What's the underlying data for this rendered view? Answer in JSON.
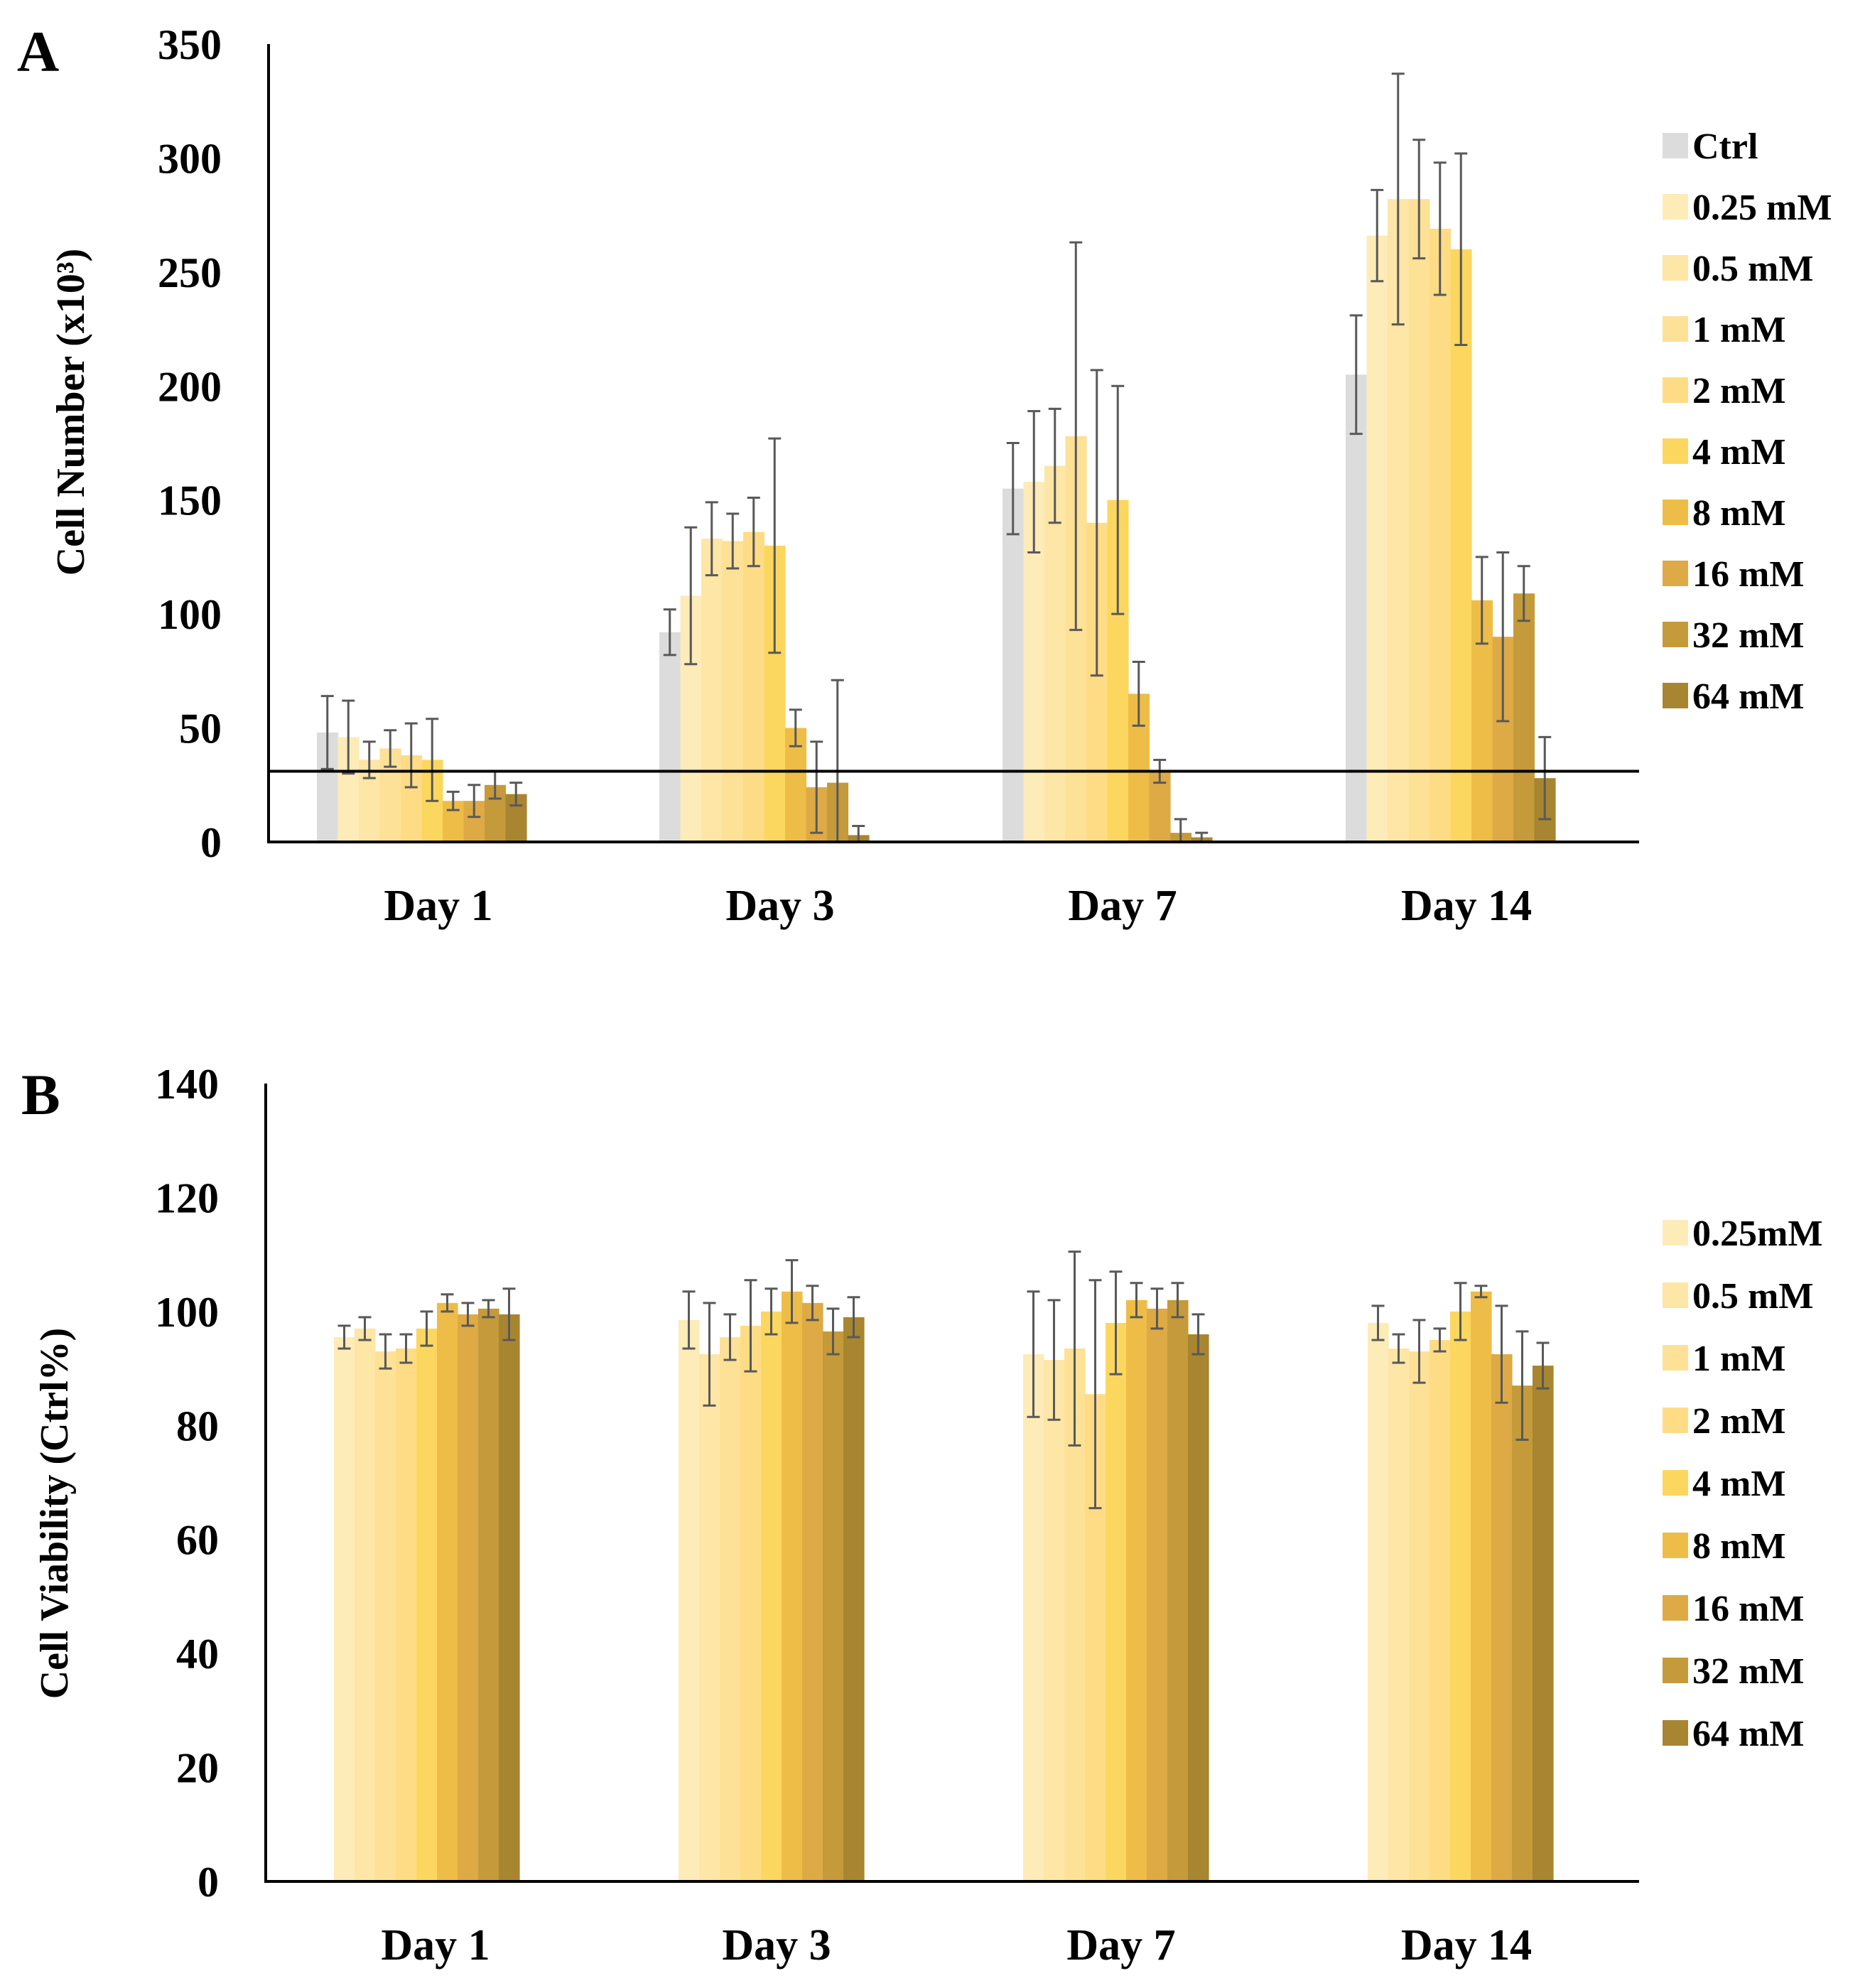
{
  "colors": {
    "Ctrl": "#dcdcdc",
    "0.25 mM": "#fdebb8",
    "0.5 mM": "#fde6a6",
    "1 mM": "#fde196",
    "2 mM": "#fedc86",
    "4 mM": "#fcd75f",
    "8 mM": "#eebd47",
    "16 mM": "#ddaa45",
    "32 mM": "#c59a3b",
    "64 mM": "#a88530"
  },
  "chart_data": [
    {
      "id": "A",
      "type": "bar",
      "panel_label": "A",
      "title": "",
      "xlabel": "",
      "ylabel": "Cell Number (x10³)",
      "ylim": [
        0,
        350
      ],
      "yticks": [
        0,
        50,
        100,
        150,
        200,
        250,
        300,
        350
      ],
      "tick_labels": [
        "0",
        "50",
        "100",
        "150",
        "200",
        "250",
        "300",
        "350"
      ],
      "grid": false,
      "legend_position": "right",
      "reference_line": 31,
      "categories": [
        "Day 1",
        "Day 3",
        "Day 7",
        "Day 14"
      ],
      "series": [
        {
          "name": "Ctrl",
          "legend_label": "Ctrl",
          "values": [
            48,
            92,
            155,
            205
          ],
          "errors": [
            16,
            10,
            20,
            26
          ]
        },
        {
          "name": "0.25 mM",
          "legend_label": "0.25 mM",
          "values": [
            46,
            108,
            158,
            266
          ],
          "errors": [
            16,
            30,
            31,
            20
          ]
        },
        {
          "name": "0.5 mM",
          "legend_label": "0.5 mM",
          "values": [
            36,
            133,
            165,
            282
          ],
          "errors": [
            8,
            16,
            25,
            55
          ]
        },
        {
          "name": "1 mM",
          "legend_label": "1 mM",
          "values": [
            41,
            132,
            178,
            282
          ],
          "errors": [
            8,
            12,
            85,
            26
          ]
        },
        {
          "name": "2 mM",
          "legend_label": "2 mM",
          "values": [
            38,
            136,
            140,
            269
          ],
          "errors": [
            14,
            15,
            67,
            29
          ]
        },
        {
          "name": "4 mM",
          "legend_label": "4 mM",
          "values": [
            36,
            130,
            150,
            260
          ],
          "errors": [
            18,
            47,
            50,
            42
          ]
        },
        {
          "name": "8 mM",
          "legend_label": "8 mM",
          "values": [
            18,
            50,
            65,
            106
          ],
          "errors": [
            4,
            8,
            14,
            19
          ]
        },
        {
          "name": "16 mM",
          "legend_label": "16 mM",
          "values": [
            18,
            24,
            31,
            90
          ],
          "errors": [
            7,
            20,
            5,
            37
          ]
        },
        {
          "name": "32 mM",
          "legend_label": "32 mM",
          "values": [
            25,
            26,
            4,
            109
          ],
          "errors": [
            6,
            45,
            6,
            12
          ]
        },
        {
          "name": "64 mM",
          "legend_label": "64 mM",
          "values": [
            21,
            3,
            2,
            28
          ],
          "errors": [
            5,
            4,
            2,
            18
          ]
        }
      ]
    },
    {
      "id": "B",
      "type": "bar",
      "panel_label": "B",
      "title": "",
      "xlabel": "",
      "ylabel": "Cell Viability (Ctrl%)",
      "ylim": [
        0,
        140
      ],
      "yticks": [
        0,
        20,
        40,
        60,
        80,
        100,
        120,
        140
      ],
      "tick_labels": [
        "0",
        "20",
        "40",
        "60",
        "80",
        "100",
        "120",
        "140"
      ],
      "grid": false,
      "legend_position": "right",
      "categories": [
        "Day 1",
        "Day 3",
        "Day 7",
        "Day 14"
      ],
      "series": [
        {
          "name": "0.25 mM",
          "legend_label": "0.25mM",
          "values": [
            95.5,
            98.5,
            92.5,
            98
          ],
          "errors": [
            2,
            5,
            11,
            3
          ]
        },
        {
          "name": "0.5 mM",
          "legend_label": "0.5 mM",
          "values": [
            97,
            92.5,
            91.5,
            93.5
          ],
          "errors": [
            2,
            9,
            10.5,
            2.5
          ]
        },
        {
          "name": "1 mM",
          "legend_label": "1 mM",
          "values": [
            93,
            95.5,
            93.5,
            93
          ],
          "errors": [
            3,
            4,
            17,
            5.5
          ]
        },
        {
          "name": "2 mM",
          "legend_label": "2 mM",
          "values": [
            93.5,
            97.5,
            85.5,
            95
          ],
          "errors": [
            2.5,
            8,
            20,
            2
          ]
        },
        {
          "name": "4 mM",
          "legend_label": "4 mM",
          "values": [
            97,
            100,
            98,
            100
          ],
          "errors": [
            3,
            4,
            9,
            5
          ]
        },
        {
          "name": "8 mM",
          "legend_label": "8 mM",
          "values": [
            101.5,
            103.5,
            102,
            103.5
          ],
          "errors": [
            1.5,
            5.5,
            3,
            1
          ]
        },
        {
          "name": "16 mM",
          "legend_label": "16 mM",
          "values": [
            99.5,
            101.5,
            100.5,
            92.5
          ],
          "errors": [
            2,
            3,
            3.5,
            8.5
          ]
        },
        {
          "name": "32 mM",
          "legend_label": "32 mM",
          "values": [
            100.5,
            96.5,
            102,
            87
          ],
          "errors": [
            1.5,
            4,
            3,
            9.5
          ]
        },
        {
          "name": "64 mM",
          "legend_label": "64 mM",
          "values": [
            99.5,
            99,
            96,
            90.5
          ],
          "errors": [
            4.5,
            3.5,
            3.5,
            4
          ]
        }
      ]
    }
  ]
}
